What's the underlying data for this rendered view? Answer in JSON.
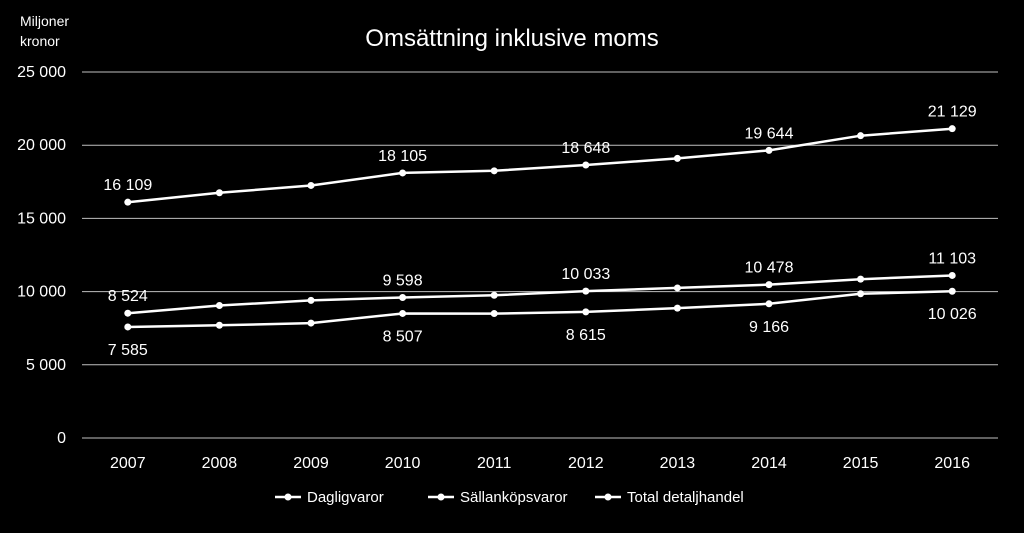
{
  "chart_data": {
    "type": "line",
    "title": "Omsättning inklusive moms",
    "ylabel_lines": [
      "Miljoner",
      "kronor"
    ],
    "xlabel": "",
    "ylim": [
      0,
      25000
    ],
    "y_ticks": [
      0,
      5000,
      10000,
      15000,
      20000,
      25000
    ],
    "y_tick_labels": [
      "0",
      "5 000",
      "10 000",
      "15 000",
      "20 000",
      "25 000"
    ],
    "grid": true,
    "legend_position": "bottom",
    "line_color": "#ffffff",
    "background": "#000000",
    "x": [
      "2007",
      "2008",
      "2009",
      "2010",
      "2011",
      "2012",
      "2013",
      "2014",
      "2015",
      "2016"
    ],
    "series": [
      {
        "name": "Dagligvaror",
        "values": [
          7585,
          7700,
          7850,
          8507,
          8500,
          8615,
          8870,
          9166,
          9850,
          10026
        ],
        "labels": [
          {
            "index": 0,
            "text": "7 585",
            "position": "below"
          },
          {
            "index": 3,
            "text": "8 507",
            "position": "below"
          },
          {
            "index": 5,
            "text": "8 615",
            "position": "below"
          },
          {
            "index": 7,
            "text": "9 166",
            "position": "below"
          },
          {
            "index": 9,
            "text": "10 026",
            "position": "below"
          }
        ]
      },
      {
        "name": "Sällanköpsvaror",
        "values": [
          8524,
          9050,
          9400,
          9598,
          9750,
          10033,
          10250,
          10478,
          10850,
          11103
        ],
        "labels": [
          {
            "index": 0,
            "text": "8 524",
            "position": "above"
          },
          {
            "index": 3,
            "text": "9 598",
            "position": "above"
          },
          {
            "index": 5,
            "text": "10 033",
            "position": "above"
          },
          {
            "index": 7,
            "text": "10 478",
            "position": "above"
          },
          {
            "index": 9,
            "text": "11 103",
            "position": "above"
          }
        ]
      },
      {
        "name": "Total detaljhandel",
        "values": [
          16109,
          16750,
          17250,
          18105,
          18250,
          18648,
          19100,
          19644,
          20650,
          21129
        ],
        "labels": [
          {
            "index": 0,
            "text": "16 109",
            "position": "above"
          },
          {
            "index": 3,
            "text": "18 105",
            "position": "above"
          },
          {
            "index": 5,
            "text": "18 648",
            "position": "above"
          },
          {
            "index": 7,
            "text": "19 644",
            "position": "above"
          },
          {
            "index": 9,
            "text": "21 129",
            "position": "above"
          }
        ]
      }
    ]
  }
}
